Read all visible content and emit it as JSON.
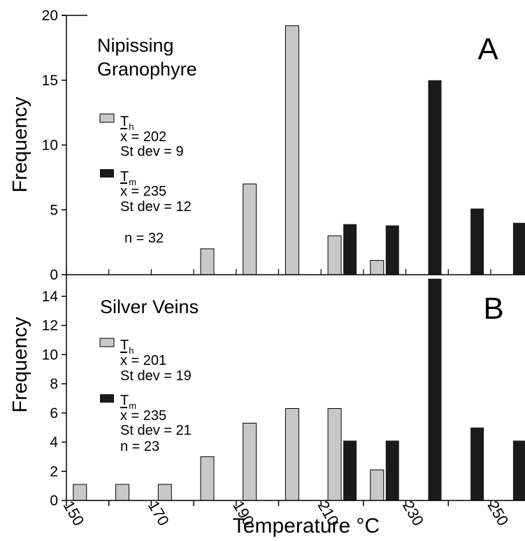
{
  "chart_data": [
    {
      "type": "bar",
      "panel_letter": "A",
      "title": "Nipissing Granophyre",
      "title_lines": [
        "Nipissing",
        "Granophyre"
      ],
      "xlabel": "",
      "ylabel": "Frequency",
      "xlim": [
        150,
        258
      ],
      "ylim": [
        0,
        20
      ],
      "yticks": [
        0,
        5,
        10,
        15,
        20
      ],
      "grid": false,
      "colors": {
        "Th": "#c8c8c8",
        "Tm": "#1a1a1a"
      },
      "series": [
        {
          "name": "Th",
          "points": [
            {
              "x": 185,
              "y": 2
            },
            {
              "x": 195,
              "y": 7
            },
            {
              "x": 205,
              "y": 19.2
            },
            {
              "x": 215,
              "y": 3
            },
            {
              "x": 225,
              "y": 1.1
            }
          ]
        },
        {
          "name": "Tm",
          "points": [
            {
              "x": 215,
              "y": 3.9
            },
            {
              "x": 225,
              "y": 3.8
            },
            {
              "x": 235,
              "y": 15
            },
            {
              "x": 245,
              "y": 5.1
            },
            {
              "x": 255,
              "y": 4
            }
          ]
        }
      ],
      "legend": {
        "th_main": "T",
        "th_sub": "h",
        "th_mean_symbol": "x",
        "th_mean_text": " = 202",
        "th_sd": "St dev = 9",
        "tm_main": "T",
        "tm_sub": "m",
        "tm_mean_symbol": "x",
        "tm_mean_text": " = 235",
        "tm_sd": "St dev = 12",
        "n": "n = 32"
      }
    },
    {
      "type": "bar",
      "panel_letter": "B",
      "title": "Silver Veins",
      "xlabel": "Temperature °C",
      "ylabel": "Frequency",
      "xlim": [
        150,
        258
      ],
      "ylim": [
        0,
        15
      ],
      "yticks": [
        0,
        2,
        4,
        6,
        8,
        10,
        12,
        14
      ],
      "xticks": [
        150,
        170,
        190,
        210,
        230,
        250
      ],
      "grid": false,
      "colors": {
        "Th": "#c8c8c8",
        "Tm": "#1a1a1a"
      },
      "series": [
        {
          "name": "Th",
          "points": [
            {
              "x": 155,
              "y": 1.1
            },
            {
              "x": 165,
              "y": 1.1
            },
            {
              "x": 175,
              "y": 1.1
            },
            {
              "x": 185,
              "y": 3
            },
            {
              "x": 195,
              "y": 5.3
            },
            {
              "x": 205,
              "y": 6.3
            },
            {
              "x": 215,
              "y": 6.3
            },
            {
              "x": 225,
              "y": 2.1
            }
          ]
        },
        {
          "name": "Tm",
          "points": [
            {
              "x": 215,
              "y": 4.1
            },
            {
              "x": 225,
              "y": 4.1
            },
            {
              "x": 235,
              "y": 15.2
            },
            {
              "x": 245,
              "y": 5
            },
            {
              "x": 255,
              "y": 4.1
            }
          ]
        }
      ],
      "legend": {
        "th_main": "T",
        "th_sub": "h",
        "th_mean_symbol": "x",
        "th_mean_text": " = 201",
        "th_sd": "St dev = 19",
        "tm_main": "T",
        "tm_sub": "m",
        "tm_mean_symbol": "x",
        "tm_mean_text": " = 235",
        "tm_sd": "St dev = 21",
        "n": "n = 23"
      }
    }
  ]
}
